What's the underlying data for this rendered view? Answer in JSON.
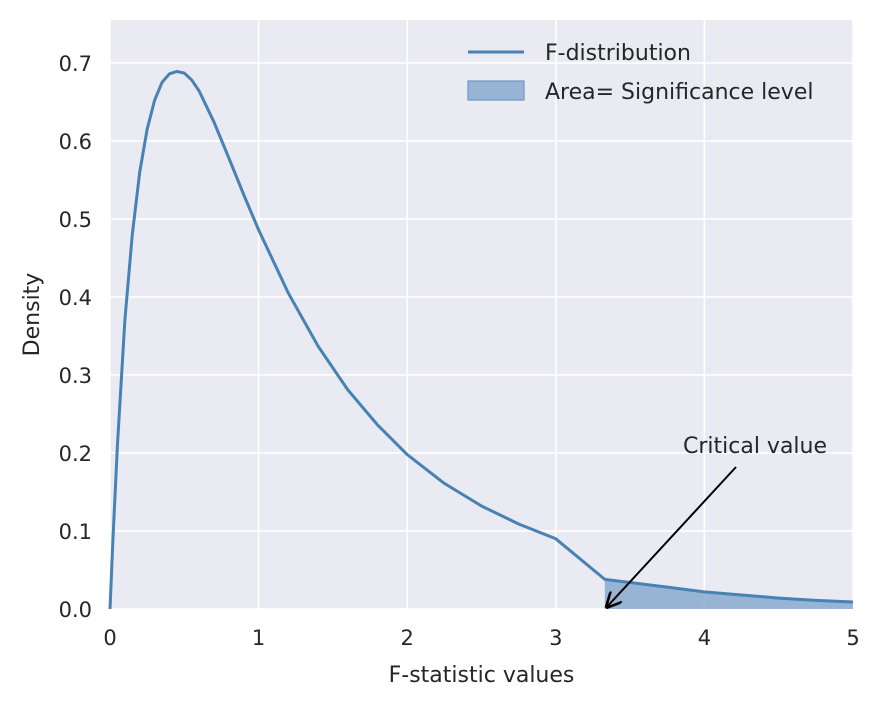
{
  "chart_data": {
    "type": "line",
    "title": "",
    "xlabel": "F-statistic values",
    "ylabel": "Density",
    "xlim": [
      0,
      5
    ],
    "ylim": [
      0,
      0.755
    ],
    "xticks": [
      0,
      1,
      2,
      3,
      4,
      5
    ],
    "xtick_labels": [
      "0",
      "1",
      "2",
      "3",
      "4",
      "5"
    ],
    "yticks": [
      0.0,
      0.1,
      0.2,
      0.3,
      0.4,
      0.5,
      0.6,
      0.7
    ],
    "ytick_labels": [
      "0.0",
      "0.1",
      "0.2",
      "0.3",
      "0.4",
      "0.5",
      "0.6",
      "0.7"
    ],
    "grid": true,
    "legend_position": "top-right",
    "series": [
      {
        "name": "F-distribution",
        "color": "#4682b4",
        "x": [
          0,
          0.02,
          0.05,
          0.1,
          0.15,
          0.2,
          0.25,
          0.3,
          0.35,
          0.4,
          0.45,
          0.5,
          0.55,
          0.6,
          0.7,
          0.8,
          0.9,
          1.0,
          1.2,
          1.4,
          1.6,
          1.8,
          2.0,
          2.25,
          2.5,
          2.75,
          3.0,
          3.33,
          3.5,
          3.75,
          4.0,
          4.25,
          4.5,
          4.75,
          5.0
        ],
        "y": [
          0,
          0.09,
          0.21,
          0.37,
          0.48,
          0.56,
          0.615,
          0.652,
          0.675,
          0.686,
          0.689,
          0.687,
          0.678,
          0.664,
          0.624,
          0.578,
          0.531,
          0.486,
          0.405,
          0.337,
          0.281,
          0.236,
          0.198,
          0.161,
          0.132,
          0.109,
          0.09,
          0.038,
          0.034,
          0.028,
          0.022,
          0.018,
          0.014,
          0.011,
          0.009
        ]
      }
    ],
    "shaded_area": {
      "name": "Area= Significance level",
      "color": "#7fa4cc",
      "x_start": 3.33,
      "x_end": 5.0
    },
    "annotations": [
      {
        "text": "Critical value",
        "arrow_to": [
          3.35,
          0.0
        ]
      }
    ]
  }
}
